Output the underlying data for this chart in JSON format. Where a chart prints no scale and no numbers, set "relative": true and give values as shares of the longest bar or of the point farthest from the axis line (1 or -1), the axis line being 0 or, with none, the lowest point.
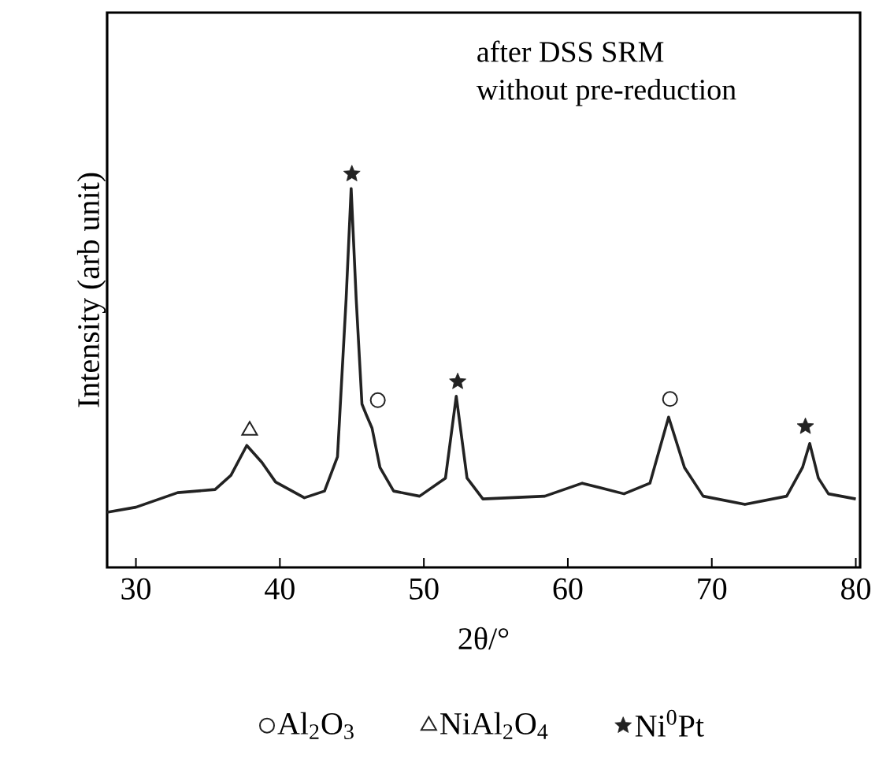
{
  "chart_data": {
    "type": "line",
    "relative": true,
    "xlabel": "2θ/°",
    "ylabel": "Intensity (arb unit)",
    "annotations": [
      "after DSS SRM",
      "without pre-reduction"
    ],
    "xlim": [
      28,
      80.3
    ],
    "xticks": [
      30,
      40,
      50,
      60,
      70,
      80
    ],
    "legend": "bottom",
    "series": [
      {
        "color": "#222222",
        "marker": "none",
        "x": [
          28.0,
          30.0,
          32.9,
          35.5,
          36.6,
          37.7,
          38.75,
          39.7,
          41.7,
          43.1,
          44.0,
          44.6,
          44.95,
          45.3,
          45.7,
          46.0,
          46.4,
          46.95,
          47.9,
          49.7,
          51.5,
          52.25,
          53.0,
          54.1,
          58.4,
          61.0,
          63.9,
          65.7,
          67.0,
          68.1,
          69.4,
          72.3,
          75.2,
          76.3,
          76.8,
          77.4,
          78.1,
          80.0
        ],
        "values": [
          0.14,
          0.153,
          0.19,
          0.198,
          0.234,
          0.31,
          0.267,
          0.217,
          0.177,
          0.194,
          0.281,
          0.682,
          0.963,
          0.682,
          0.415,
          0.388,
          0.354,
          0.254,
          0.194,
          0.181,
          0.227,
          0.435,
          0.227,
          0.174,
          0.181,
          0.214,
          0.187,
          0.214,
          0.382,
          0.254,
          0.181,
          0.16,
          0.181,
          0.254,
          0.315,
          0.227,
          0.187,
          0.174
        ]
      },
      {
        "type": "scatter",
        "name": "Al$_{2}$O$_{3}$",
        "color": "#222222",
        "marker": "circle",
        "x": [
          46.8,
          67.1
        ],
        "values": [
          0.425,
          0.428
        ]
      },
      {
        "type": "scatter",
        "name": "NiAl$_{2}$O$_{4}$",
        "color": "#222222",
        "marker": "triangle",
        "x": [
          37.9
        ],
        "values": [
          0.348
        ]
      },
      {
        "type": "scatter",
        "name": "Ni$^{0}$Pt",
        "color": "#222222",
        "marker": "star",
        "x": [
          45.0,
          52.35,
          76.5
        ],
        "values": [
          1.0,
          0.472,
          0.358
        ]
      }
    ]
  }
}
